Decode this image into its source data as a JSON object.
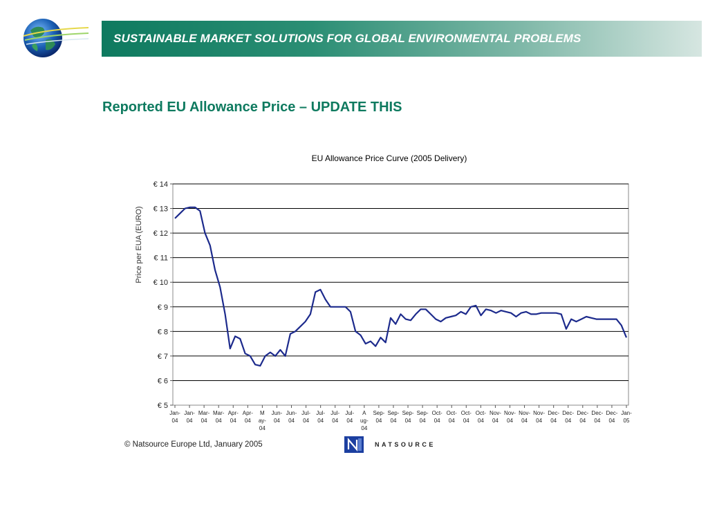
{
  "header": {
    "banner_title": "SUSTAINABLE MARKET SOLUTIONS FOR GLOBAL ENVIRONMENTAL PROBLEMS",
    "brand_color": "#0e7a5f"
  },
  "slide": {
    "title": "Reported EU Allowance Price – UPDATE THIS"
  },
  "footer": {
    "copyright": "© Natsource Europe Ltd, January 2005",
    "brand_text": "NATSOURCE"
  },
  "chart_data": {
    "type": "line",
    "title": "EU Allowance Price Curve (2005 Delivery)",
    "ylabel": "Price per EUA (EURO)",
    "xlabel": "",
    "ylim": [
      5,
      14
    ],
    "yticks": [
      "€ 5",
      "€ 6",
      "€ 7",
      "€ 8",
      "€ 9",
      "€ 10",
      "€ 11",
      "€ 12",
      "€ 13",
      "€ 14"
    ],
    "x_tick_labels": [
      [
        "Jan-",
        "04"
      ],
      [
        "Jan-",
        "04"
      ],
      [
        "Mar-",
        "04"
      ],
      [
        "Mar-",
        "04"
      ],
      [
        "Apr-",
        "04"
      ],
      [
        "Apr-",
        "04"
      ],
      [
        "M",
        "ay-",
        "04"
      ],
      [
        "Jun-",
        "04"
      ],
      [
        "Jun-",
        "04"
      ],
      [
        "Jul-",
        "04"
      ],
      [
        "Jul-",
        "04"
      ],
      [
        "Jul-",
        "04"
      ],
      [
        "Jul-",
        "04"
      ],
      [
        "A",
        "ug-",
        "04"
      ],
      [
        "Sep-",
        "04"
      ],
      [
        "Sep-",
        "04"
      ],
      [
        "Sep-",
        "04"
      ],
      [
        "Sep-",
        "04"
      ],
      [
        "Oct-",
        "04"
      ],
      [
        "Oct-",
        "04"
      ],
      [
        "Oct-",
        "04"
      ],
      [
        "Oct-",
        "04"
      ],
      [
        "Nov-",
        "04"
      ],
      [
        "Nov-",
        "04"
      ],
      [
        "Nov-",
        "04"
      ],
      [
        "Nov-",
        "04"
      ],
      [
        "Dec-",
        "04"
      ],
      [
        "Dec-",
        "04"
      ],
      [
        "Dec-",
        "04"
      ],
      [
        "Dec-",
        "04"
      ],
      [
        "Dec-",
        "04"
      ],
      [
        "Jan-",
        "05"
      ]
    ],
    "grid": true,
    "line_color": "#1c2a8c",
    "series": [
      {
        "values": [
          12.6,
          12.8,
          13.0,
          13.05,
          13.05,
          12.9,
          12.0,
          11.5,
          10.5,
          9.8,
          8.7,
          7.3,
          7.8,
          7.7,
          7.1,
          7.0,
          6.65,
          6.6,
          7.0,
          7.15,
          7.0,
          7.25,
          7.0,
          7.9,
          8.0,
          8.2,
          8.4,
          8.7,
          9.6,
          9.7,
          9.3,
          9.0,
          9.0,
          9.0,
          9.0,
          8.8,
          8.0,
          7.85,
          7.5,
          7.6,
          7.4,
          7.75,
          7.55,
          8.55,
          8.3,
          8.7,
          8.5,
          8.45,
          8.7,
          8.9,
          8.9,
          8.7,
          8.5,
          8.4,
          8.55,
          8.6,
          8.65,
          8.8,
          8.7,
          9.0,
          9.05,
          8.65,
          8.9,
          8.85,
          8.75,
          8.85,
          8.8,
          8.75,
          8.6,
          8.75,
          8.8,
          8.7,
          8.7,
          8.75,
          8.75,
          8.75,
          8.75,
          8.7,
          8.1,
          8.5,
          8.4,
          8.5,
          8.6,
          8.55,
          8.5,
          8.5,
          8.5,
          8.5,
          8.5,
          8.25,
          7.75
        ]
      }
    ]
  }
}
